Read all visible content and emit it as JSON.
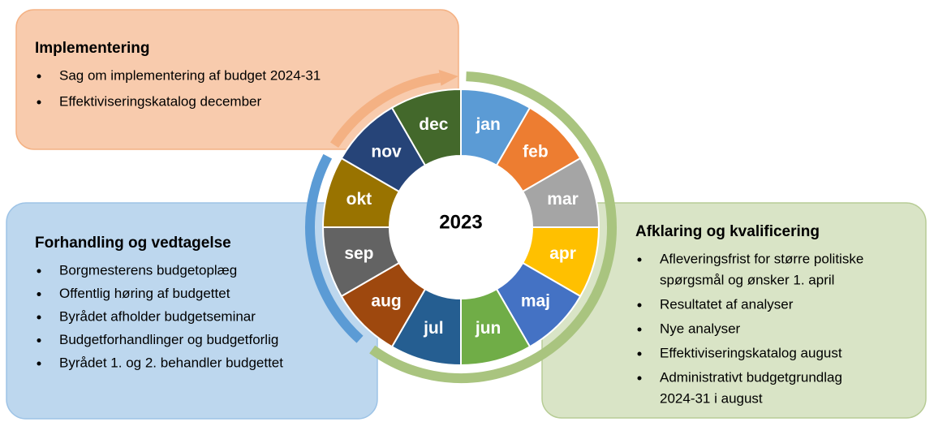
{
  "year": "2023",
  "months": [
    {
      "label": "jan",
      "color": "#5b9bd5"
    },
    {
      "label": "feb",
      "color": "#ed7d31"
    },
    {
      "label": "mar",
      "color": "#a5a5a5"
    },
    {
      "label": "apr",
      "color": "#ffc000"
    },
    {
      "label": "maj",
      "color": "#4472c4"
    },
    {
      "label": "jun",
      "color": "#70ad47"
    },
    {
      "label": "jul",
      "color": "#255e91"
    },
    {
      "label": "aug",
      "color": "#9e480e"
    },
    {
      "label": "sep",
      "color": "#636363"
    },
    {
      "label": "okt",
      "color": "#997300"
    },
    {
      "label": "nov",
      "color": "#264478"
    },
    {
      "label": "dec",
      "color": "#43682b"
    }
  ],
  "phases": [
    {
      "title": "Implementering",
      "items": [
        [
          "Sag om implementering af budget 2024-31"
        ],
        [
          "Effektiviseringskatalog december"
        ]
      ]
    },
    {
      "title": "Forhandling og vedtagelse",
      "items": [
        [
          "Borgmesterens budgetoplæg"
        ],
        [
          "Offentlig høring af budgettet"
        ],
        [
          "Byrådet afholder budgetseminar"
        ],
        [
          "Budgetforhandlinger og budgetforlig"
        ],
        [
          "Byrådet 1. og 2. behandler budgettet"
        ]
      ]
    },
    {
      "title": "Afklaring og kvalificering",
      "items": [
        [
          "Afleveringsfrist for større politiske",
          "spørgsmål og ønsker 1. april"
        ],
        [
          "Resultatet af analyser"
        ],
        [
          "Nye analyser"
        ],
        [
          "Effektiviseringskatalog august"
        ],
        [
          "Administrativt budgetgrundlag",
          "2024-31 i august"
        ]
      ]
    }
  ]
}
